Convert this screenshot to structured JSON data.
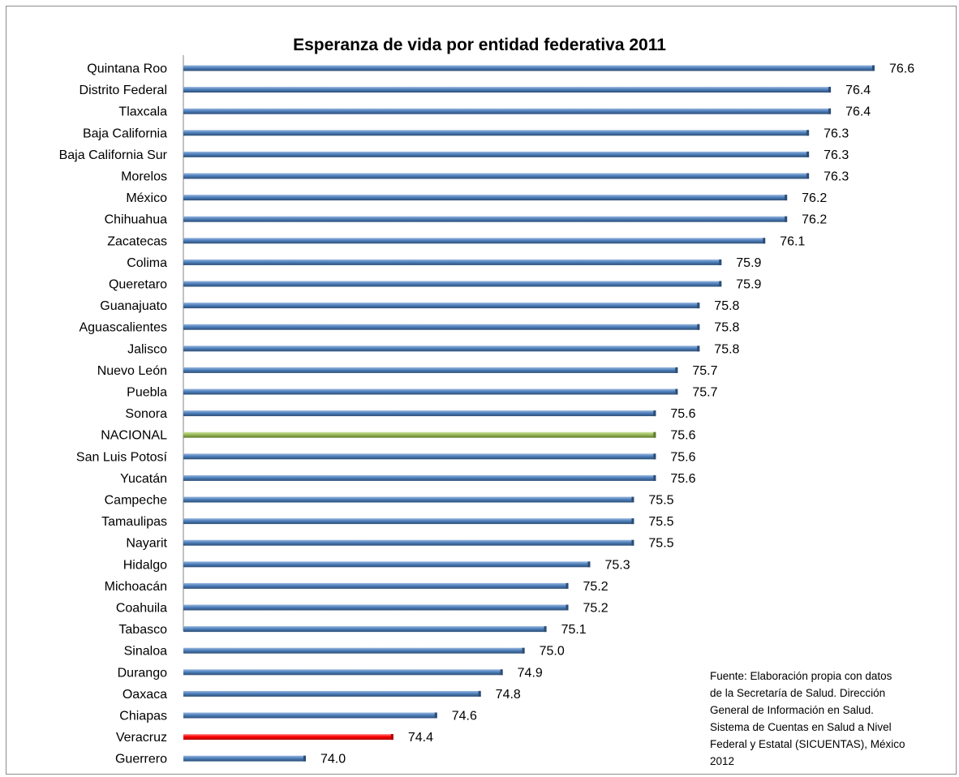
{
  "chart_data": {
    "type": "bar",
    "orientation": "horizontal",
    "title": "Esperanza de vida por entidad federativa 2011",
    "xlabel": "",
    "ylabel": "",
    "grid": false,
    "legend": "none",
    "xlim": [
      73.44,
      76.6
    ],
    "categories": [
      "Quintana Roo",
      "Distrito Federal",
      "Tlaxcala",
      "Baja California",
      "Baja California Sur",
      "Morelos",
      "México",
      "Chihuahua",
      "Zacatecas",
      "Colima",
      "Queretaro",
      "Guanajuato",
      "Aguascalientes",
      "Jalisco",
      "Nuevo León",
      "Puebla",
      "Sonora",
      "NACIONAL",
      "San Luis Potosí",
      "Yucatán",
      "Campeche",
      "Tamaulipas",
      "Nayarit",
      "Hidalgo",
      "Michoacán",
      "Coahuila",
      "Tabasco",
      "Sinaloa",
      "Durango",
      "Oaxaca",
      "Chiapas",
      "Veracruz",
      "Guerrero"
    ],
    "values": [
      76.6,
      76.4,
      76.4,
      76.3,
      76.3,
      76.3,
      76.2,
      76.2,
      76.1,
      75.9,
      75.9,
      75.8,
      75.8,
      75.8,
      75.7,
      75.7,
      75.6,
      75.6,
      75.6,
      75.6,
      75.5,
      75.5,
      75.5,
      75.3,
      75.2,
      75.2,
      75.1,
      75.0,
      74.9,
      74.8,
      74.6,
      74.4,
      74.0
    ],
    "value_labels": [
      "76.6",
      "76.4",
      "76.4",
      "76.3",
      "76.3",
      "76.3",
      "76.2",
      "76.2",
      "76.1",
      "75.9",
      "75.9",
      "75.8",
      "75.8",
      "75.8",
      "75.7",
      "75.7",
      "75.6",
      "75.6",
      "75.6",
      "75.6",
      "75.5",
      "75.5",
      "75.5",
      "75.3",
      "75.2",
      "75.2",
      "75.1",
      "75.0",
      "74.9",
      "74.8",
      "74.6",
      "74.4",
      "74.0"
    ],
    "highlights": {
      "NACIONAL": "green",
      "Veracruz": "red"
    }
  },
  "colors": {
    "bar": "#4f81bd",
    "bar_dark": "#2c4d75",
    "bar_light": "#9bb8de",
    "national": "#9bbb59",
    "national_dark": "#5f7a2e",
    "national_light": "#cde3a4",
    "highlight_red": "#ff0000",
    "highlight_red_dark": "#b00000",
    "highlight_red_light": "#ff8a8a",
    "axis": "#868686"
  },
  "source_lines": [
    "Fuente: Elaboración propia con datos",
    "de la Secretaría de Salud. Dirección",
    "General de Información en Salud.",
    "Sistema de Cuentas en Salud a Nivel",
    "Federal y Estatal (SICUENTAS), México",
    "2012"
  ]
}
